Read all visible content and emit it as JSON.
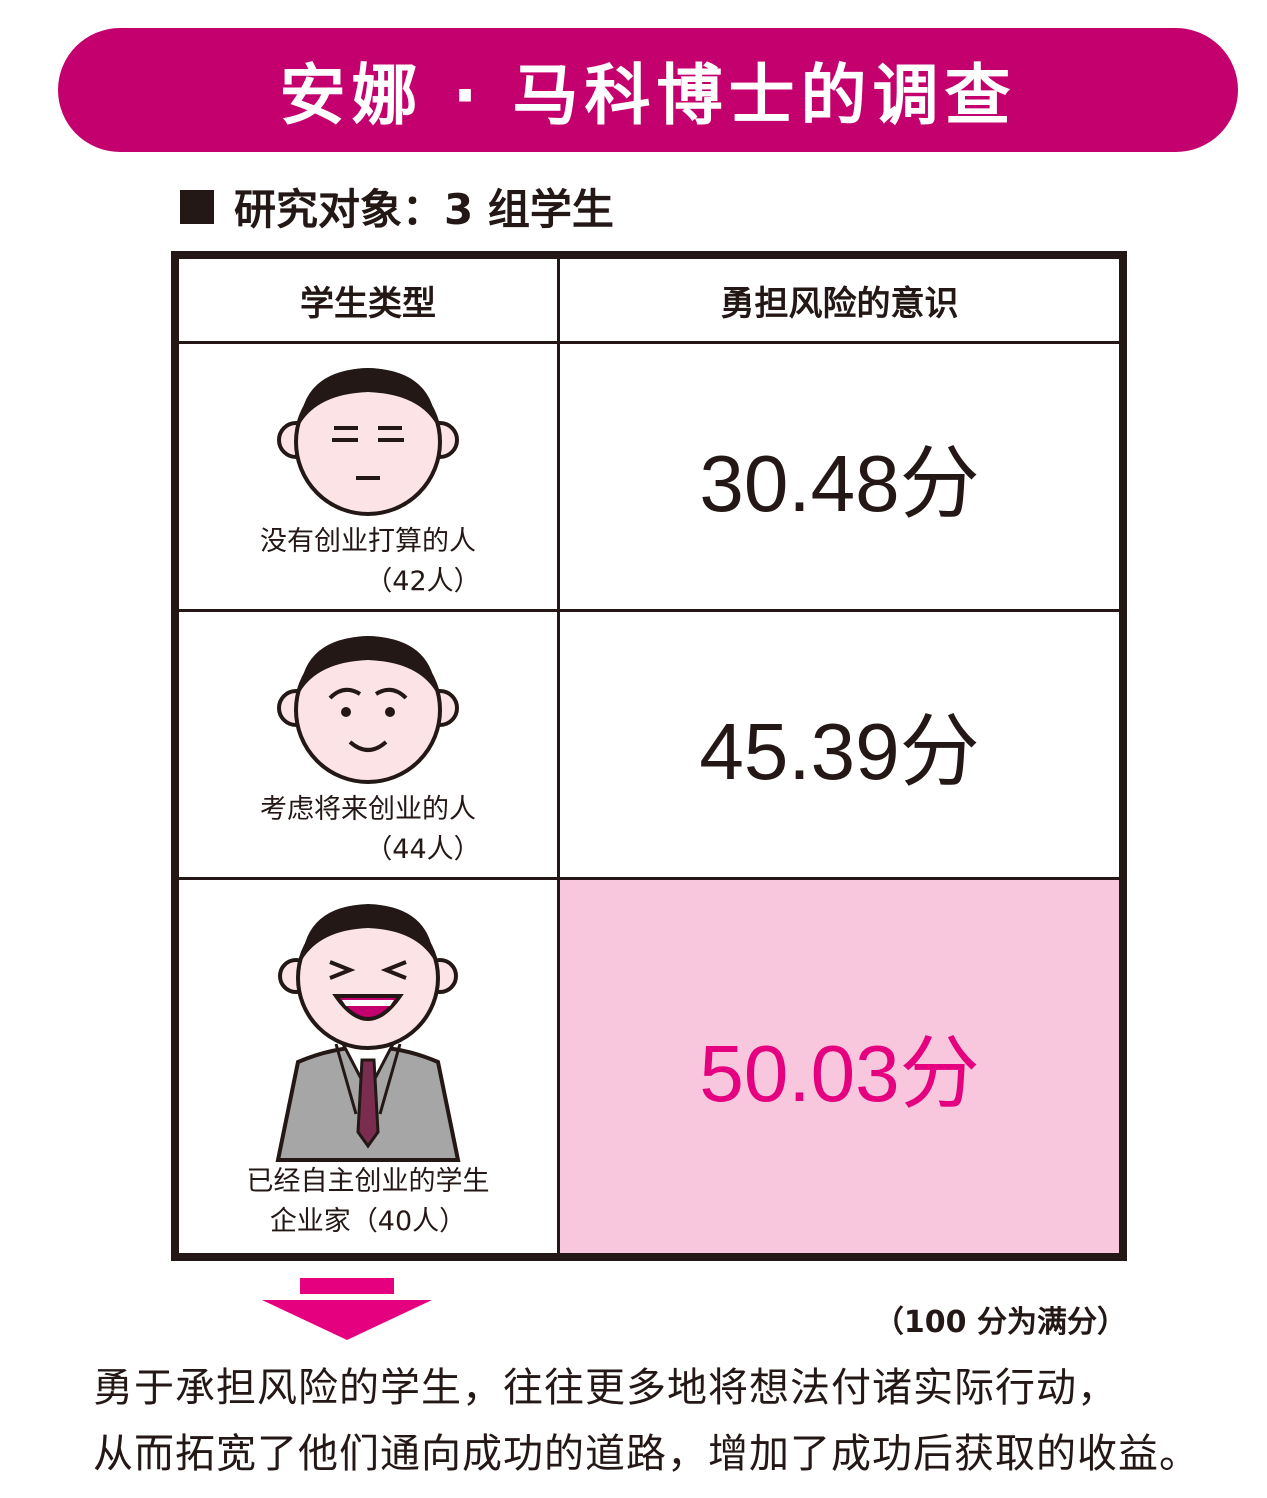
{
  "title": "安娜 · 马科博士的调查",
  "subtitle": "研究对象：3 组学生",
  "table": {
    "headers": [
      "学生类型",
      "勇担风险的意识"
    ],
    "rows": [
      {
        "group": "没有创业打算的人",
        "count": "（42人）",
        "score": "30.48分"
      },
      {
        "group": "考虑将来创业的人",
        "count": "（44人）",
        "score": "45.39分"
      },
      {
        "group": "已经自主创业的学生",
        "group2": "企业家",
        "count": "（40人）",
        "score": "50.03分"
      }
    ]
  },
  "note": "（100 分为满分）",
  "conclusion": [
    "勇于承担风险的学生，往往更多地将想法付诸实际行动，",
    "从而拓宽了他们通向成功的道路，增加了成功后获取的收益。"
  ],
  "colors": {
    "banner": "#c4006e",
    "highlight_bg": "#f8c6dd",
    "highlight_text": "#e4007f",
    "face": "#fbe3e6"
  },
  "icons": [
    "square-bullet-icon",
    "neutral-face-icon",
    "smiling-face-icon",
    "entrepreneur-icon",
    "down-arrow-icon"
  ]
}
